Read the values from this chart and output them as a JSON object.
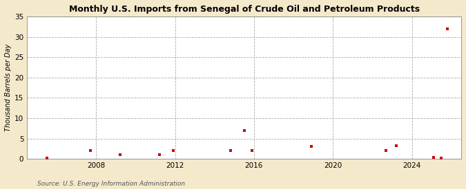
{
  "title": "Monthly U.S. Imports from Senegal of Crude Oil and Petroleum Products",
  "ylabel": "Thousand Barrels per Day",
  "source": "Source: U.S. Energy Information Administration",
  "fig_background_color": "#f5e9cc",
  "plot_background_color": "#ffffff",
  "marker_color": "#cc0000",
  "marker": "s",
  "marker_size": 3.5,
  "xlim": [
    2004.5,
    2026.5
  ],
  "ylim": [
    0,
    35
  ],
  "yticks": [
    0,
    5,
    10,
    15,
    20,
    25,
    30,
    35
  ],
  "xticks": [
    2008,
    2012,
    2016,
    2020,
    2024
  ],
  "data_points": [
    [
      2005.5,
      0.2
    ],
    [
      2007.7,
      2.0
    ],
    [
      2009.2,
      1.0
    ],
    [
      2011.2,
      1.1
    ],
    [
      2011.9,
      2.0
    ],
    [
      2014.8,
      2.1
    ],
    [
      2015.5,
      7.0
    ],
    [
      2015.9,
      2.0
    ],
    [
      2018.9,
      3.1
    ],
    [
      2022.7,
      2.1
    ],
    [
      2023.2,
      3.2
    ],
    [
      2025.1,
      0.3
    ],
    [
      2025.5,
      0.2
    ],
    [
      2025.8,
      32.0
    ]
  ]
}
